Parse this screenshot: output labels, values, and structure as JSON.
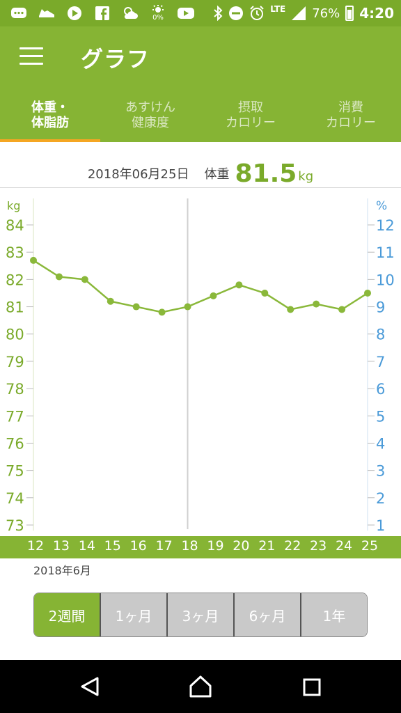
{
  "status_bar": {
    "icons": [
      "message-icon",
      "shoe-icon",
      "play-icon",
      "facebook-icon",
      "weather-icon",
      "sun-icon",
      "youtube-icon",
      "bluetooth-icon",
      "dnd-icon",
      "alarm-icon"
    ],
    "sun_percent": "0%",
    "network": "LTE",
    "battery": "76%",
    "time": "4:20"
  },
  "app_bar": {
    "title": "グラフ"
  },
  "tabs": [
    {
      "line1": "体重・",
      "line2": "体脂肪",
      "active": true
    },
    {
      "line1": "あすけん",
      "line2": "健康度",
      "active": false
    },
    {
      "line1": "摂取",
      "line2": "カロリー",
      "active": false
    },
    {
      "line1": "消費",
      "line2": "カロリー",
      "active": false
    }
  ],
  "summary": {
    "date": "2018年06月25日",
    "label": "体重",
    "value": "81.5",
    "unit": "kg"
  },
  "chart_data": {
    "type": "line",
    "left_axis_unit": "kg",
    "right_axis_unit": "%",
    "x": [
      "12",
      "13",
      "14",
      "15",
      "16",
      "17",
      "18",
      "19",
      "20",
      "21",
      "22",
      "23",
      "24",
      "25"
    ],
    "series": [
      {
        "values": [
          82.7,
          82.1,
          82.0,
          81.2,
          81.0,
          80.8,
          81.0,
          81.4,
          81.8,
          81.5,
          80.9,
          81.1,
          80.9,
          81.5
        ]
      }
    ],
    "ylim": [
      73,
      84
    ],
    "y_ticks": [
      "84",
      "83",
      "82",
      "81",
      "80",
      "79",
      "78",
      "77",
      "76",
      "75",
      "74",
      "73"
    ],
    "y2lim": [
      1,
      12
    ],
    "y2_ticks": [
      "12",
      "11",
      "10",
      "9",
      "8",
      "7",
      "6",
      "5",
      "4",
      "3",
      "2",
      "1"
    ],
    "highlight_x": "18",
    "colors": {
      "line": "#8ab83a",
      "left_axis": "#7aaa2a",
      "right_axis": "#4a9ad8",
      "band": "#86b434"
    }
  },
  "month_label": "2018年6月",
  "ranges": [
    {
      "label": "2週間",
      "active": true
    },
    {
      "label": "1ヶ月",
      "active": false
    },
    {
      "label": "3ヶ月",
      "active": false
    },
    {
      "label": "6ヶ月",
      "active": false
    },
    {
      "label": "1年",
      "active": false
    }
  ],
  "nav": [
    "back-icon",
    "home-icon",
    "recents-icon"
  ]
}
